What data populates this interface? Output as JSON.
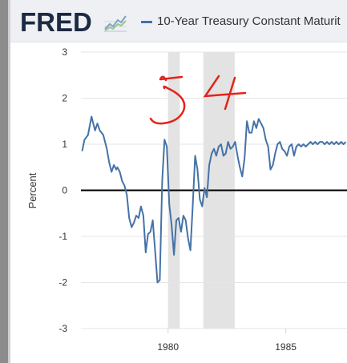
{
  "header": {
    "logo_text": "FRED",
    "logo_icon": "fred-trend-chart-icon",
    "series_title": "10-Year Treasury Constant Maturit"
  },
  "colors": {
    "series_line": "#4572a7",
    "recession_shading": "#e3e3e3",
    "zero_line": "#000000",
    "gridline": "#e6e6e6",
    "annotation": "#e3241b",
    "header_bg": "#eef0f3",
    "logo_text": "#1d2a43"
  },
  "handwritten_annotation": "54",
  "chart_data": {
    "type": "line",
    "title": "",
    "xlabel": "",
    "ylabel": "Percent",
    "xlim": [
      1976.3,
      1987.6
    ],
    "ylim": [
      -3,
      3
    ],
    "x_ticks": [
      1980,
      1985
    ],
    "y_ticks": [
      3,
      2,
      1,
      0,
      -1,
      -2,
      -3
    ],
    "grid": "horizontal",
    "reference_line": {
      "y": 0,
      "color": "#000000"
    },
    "recessions": [
      {
        "start": 1980.0,
        "end": 1980.5
      },
      {
        "start": 1981.5,
        "end": 1982.83
      }
    ],
    "series": [
      {
        "color": "#4572a7",
        "x": [
          1976.35,
          1976.45,
          1976.6,
          1976.75,
          1976.9,
          1977.0,
          1977.1,
          1977.25,
          1977.4,
          1977.5,
          1977.6,
          1977.7,
          1977.8,
          1977.85,
          1977.95,
          1978.05,
          1978.15,
          1978.25,
          1978.35,
          1978.45,
          1978.55,
          1978.65,
          1978.75,
          1978.85,
          1978.95,
          1979.05,
          1979.15,
          1979.25,
          1979.35,
          1979.45,
          1979.55,
          1979.65,
          1979.75,
          1979.85,
          1979.95,
          1980.05,
          1980.15,
          1980.25,
          1980.35,
          1980.45,
          1980.55,
          1980.65,
          1980.75,
          1980.85,
          1980.95,
          1981.05,
          1981.15,
          1981.25,
          1981.35,
          1981.45,
          1981.55,
          1981.65,
          1981.75,
          1981.85,
          1981.95,
          1982.05,
          1982.15,
          1982.25,
          1982.35,
          1982.45,
          1982.55,
          1982.65,
          1982.75,
          1982.85,
          1982.95,
          1983.05,
          1983.15,
          1983.25,
          1983.35,
          1983.45,
          1983.55,
          1983.65,
          1983.75,
          1983.85,
          1983.95,
          1984.05,
          1984.15,
          1984.25,
          1984.35,
          1984.45,
          1984.55,
          1984.65,
          1984.75,
          1984.85,
          1984.95,
          1985.05,
          1985.15,
          1985.25,
          1985.35,
          1985.45,
          1985.55,
          1985.65,
          1985.75,
          1985.85,
          1985.95,
          1986.05,
          1986.15,
          1986.25,
          1986.35,
          1986.45,
          1986.55,
          1986.65,
          1986.75,
          1986.85,
          1986.95,
          1987.05,
          1987.15,
          1987.25,
          1987.35,
          1987.45,
          1987.55
        ],
        "values": [
          0.85,
          1.1,
          1.2,
          1.6,
          1.3,
          1.45,
          1.3,
          1.2,
          0.9,
          0.6,
          0.4,
          0.55,
          0.45,
          0.5,
          0.4,
          0.2,
          0.1,
          -0.1,
          -0.6,
          -0.8,
          -0.7,
          -0.55,
          -0.6,
          -0.35,
          -0.55,
          -1.35,
          -0.95,
          -0.9,
          -0.65,
          -1.3,
          -2.0,
          -1.95,
          0.2,
          1.1,
          0.95,
          -0.3,
          -0.75,
          -1.4,
          -0.65,
          -0.6,
          -0.9,
          -0.55,
          -0.65,
          -1.05,
          -1.3,
          -0.3,
          0.75,
          0.45,
          -0.2,
          -0.35,
          0.05,
          -0.15,
          0.55,
          0.8,
          0.9,
          0.75,
          0.95,
          1.0,
          0.75,
          0.8,
          1.05,
          0.9,
          0.95,
          1.05,
          0.75,
          0.5,
          0.3,
          0.7,
          1.5,
          1.25,
          1.25,
          1.5,
          1.35,
          1.55,
          1.45,
          1.35,
          1.1,
          0.95,
          0.45,
          0.55,
          0.8,
          1.0,
          1.05,
          0.9,
          0.85,
          0.75,
          0.95,
          1.0,
          0.75,
          0.95,
          1.0,
          0.95,
          1.0,
          0.95,
          1.0,
          1.05,
          1.0,
          1.05,
          1.0,
          1.05,
          1.05,
          1.0,
          1.05,
          1.0,
          1.05,
          1.0,
          1.05,
          1.0,
          1.05,
          1.0,
          1.05
        ]
      }
    ]
  }
}
